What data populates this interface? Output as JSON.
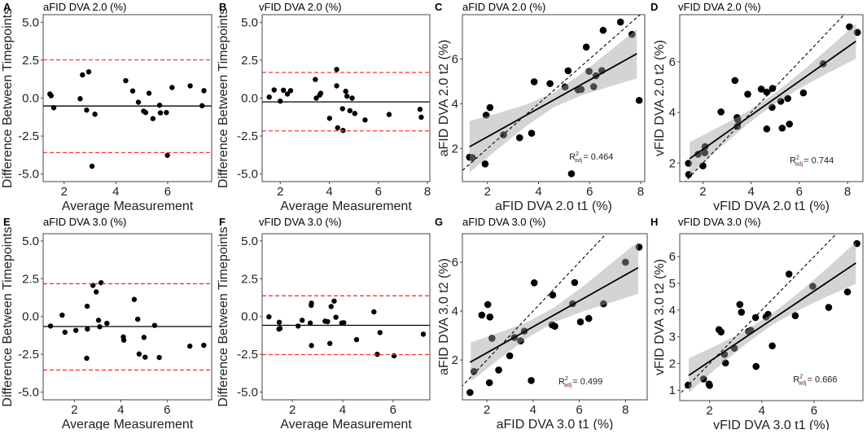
{
  "colors": {
    "points": "#000000",
    "limits": "#ff3333",
    "band": "#bdbdbd",
    "fit": "#000000",
    "identity": "#000000"
  },
  "chart_data": [
    {
      "panel": "A",
      "type": "scatter",
      "kind": "bland-altman",
      "title": "aFID DVA 2.0 (%)",
      "xlabel": "Average Measurement",
      "ylabel": "Difference Between Timepoints",
      "xlim": [
        1.19,
        7.7
      ],
      "ylim": [
        -5.5,
        5.5
      ],
      "xticks": [
        2,
        4,
        6
      ],
      "xtick_labels": [
        "2",
        "4",
        "6"
      ],
      "yticks": [
        -5,
        -2.5,
        0,
        2.5,
        5
      ],
      "ytick_labels": [
        "-5.0",
        "-2.5",
        "0.0",
        "2.5",
        "5.0"
      ],
      "mean_diff": -0.52,
      "upper_loa": 2.52,
      "lower_loa": -3.59,
      "points": [
        [
          1.45,
          0.27
        ],
        [
          1.5,
          0.16
        ],
        [
          1.6,
          -0.63
        ],
        [
          2.62,
          -0.04
        ],
        [
          2.71,
          1.53
        ],
        [
          2.87,
          -0.79
        ],
        [
          2.95,
          1.73
        ],
        [
          3.08,
          -4.49
        ],
        [
          3.19,
          -1.06
        ],
        [
          4.38,
          1.15
        ],
        [
          4.65,
          0.47
        ],
        [
          4.87,
          -0.27
        ],
        [
          5.07,
          -0.86
        ],
        [
          5.15,
          -0.95
        ],
        [
          5.28,
          0.32
        ],
        [
          5.43,
          -1.35
        ],
        [
          5.69,
          -0.47
        ],
        [
          5.72,
          -0.97
        ],
        [
          5.95,
          -0.95
        ],
        [
          5.99,
          -3.77
        ],
        [
          6.17,
          0.7
        ],
        [
          6.87,
          0.81
        ],
        [
          7.33,
          -0.5
        ],
        [
          7.4,
          0.49
        ]
      ]
    },
    {
      "panel": "B",
      "type": "scatter",
      "kind": "bland-altman",
      "title": "vFID DVA 2.0 (%)",
      "xlabel": "Average Measurement",
      "ylabel": "Difference Between Timepoints",
      "xlim": [
        1.26,
        8.1
      ],
      "ylim": [
        -5.5,
        5.5
      ],
      "xticks": [
        2,
        4,
        6,
        8
      ],
      "xtick_labels": [
        "2",
        "4",
        "6",
        "8"
      ],
      "yticks": [
        -5,
        -2.5,
        0,
        2.5,
        5
      ],
      "ytick_labels": [
        "-5.0",
        "-2.5",
        "0.0",
        "2.5",
        "5.0"
      ],
      "mean_diff": -0.25,
      "upper_loa": 1.69,
      "lower_loa": -2.16,
      "points": [
        [
          1.55,
          0.07
        ],
        [
          1.75,
          0.54
        ],
        [
          2.0,
          -0.2
        ],
        [
          2.13,
          0.52
        ],
        [
          2.29,
          0.27
        ],
        [
          2.42,
          0.49
        ],
        [
          3.43,
          1.23
        ],
        [
          3.47,
          0.0
        ],
        [
          3.61,
          0.2
        ],
        [
          3.65,
          0.32
        ],
        [
          4.01,
          -1.33
        ],
        [
          4.3,
          1.89
        ],
        [
          4.3,
          0.81
        ],
        [
          4.34,
          -1.96
        ],
        [
          4.56,
          -2.13
        ],
        [
          4.54,
          -0.7
        ],
        [
          4.67,
          0.45
        ],
        [
          4.72,
          0.13
        ],
        [
          4.84,
          -0.83
        ],
        [
          4.93,
          0.0
        ],
        [
          5.04,
          -1.01
        ],
        [
          5.46,
          -1.44
        ],
        [
          6.44,
          -1.08
        ],
        [
          7.7,
          -0.74
        ],
        [
          7.75,
          -1.26
        ]
      ]
    },
    {
      "panel": "C",
      "type": "scatter",
      "kind": "regression",
      "title": "aFID DVA 2.0 (%)",
      "xlabel": "aFID DVA 2.0 t1 (%)",
      "ylabel": "aFID DVA 2.0 t2 (%)",
      "xlim": [
        1.02,
        8.16
      ],
      "ylim": [
        0.52,
        7.98
      ],
      "xticks": [
        2,
        4,
        6,
        8
      ],
      "xtick_labels": [
        "2",
        "4",
        "6",
        "8"
      ],
      "yticks": [
        2,
        4,
        6
      ],
      "ytick_labels": [
        "2",
        "4",
        "6"
      ],
      "r2_label": "R",
      "r2_sup": "2",
      "r2_sub": "adj",
      "r2_value": "= 0.464",
      "fit": {
        "slope": 0.635,
        "intercept": 1.25,
        "x_range": [
          1.3,
          7.85
        ]
      },
      "ci_band": {
        "x": [
          1.3,
          2.4,
          3.5,
          4.6,
          5.7,
          6.8,
          7.85
        ],
        "lower": [
          0.93,
          1.97,
          2.98,
          3.85,
          4.38,
          4.77,
          5.13
        ],
        "upper": [
          3.23,
          3.57,
          3.96,
          4.49,
          5.36,
          6.37,
          7.33
        ]
      },
      "points": [
        [
          1.3,
          1.61
        ],
        [
          1.41,
          1.59
        ],
        [
          1.91,
          1.31
        ],
        [
          1.95,
          3.49
        ],
        [
          2.1,
          3.83
        ],
        [
          2.63,
          2.61
        ],
        [
          3.26,
          2.48
        ],
        [
          3.73,
          2.68
        ],
        [
          3.83,
          4.98
        ],
        [
          4.45,
          4.9
        ],
        [
          5.04,
          4.75
        ],
        [
          5.16,
          5.47
        ],
        [
          5.29,
          0.87
        ],
        [
          5.55,
          4.62
        ],
        [
          5.67,
          4.64
        ],
        [
          5.87,
          6.53
        ],
        [
          5.98,
          5.45
        ],
        [
          6.16,
          4.76
        ],
        [
          6.25,
          5.25
        ],
        [
          6.48,
          5.48
        ],
        [
          6.53,
          7.28
        ],
        [
          7.21,
          7.65
        ],
        [
          7.66,
          7.1
        ],
        [
          7.94,
          4.15
        ]
      ]
    },
    {
      "panel": "D",
      "type": "scatter",
      "kind": "regression",
      "title": "vFID DVA 2.0 (%)",
      "xlabel": "vFID DVA 2.0 t1 (%)",
      "ylabel": "vFID DVA 2.0 t2 (%)",
      "xlim": [
        1.04,
        8.64
      ],
      "ylim": [
        1.27,
        7.86
      ],
      "xticks": [
        2,
        4,
        6,
        8
      ],
      "xtick_labels": [
        "2",
        "4",
        "6",
        "8"
      ],
      "yticks": [
        2,
        4,
        6
      ],
      "ytick_labels": [
        "2",
        "4",
        "6"
      ],
      "r2_label": "R",
      "r2_sup": "2",
      "r2_sub": "adj",
      "r2_value": "= 0.744",
      "fit": {
        "slope": 0.672,
        "intercept": 1.2,
        "x_range": [
          1.45,
          8.35
        ]
      },
      "ci_band": {
        "x": [
          1.45,
          2.6,
          3.75,
          4.9,
          6.05,
          7.2,
          8.35
        ],
        "lower": [
          1.52,
          2.51,
          3.46,
          4.29,
          4.97,
          5.56,
          6.12
        ],
        "upper": [
          2.82,
          3.39,
          3.98,
          4.69,
          5.57,
          6.52,
          7.5
        ]
      },
      "points": [
        [
          1.4,
          1.99
        ],
        [
          1.41,
          1.55
        ],
        [
          1.8,
          2.35
        ],
        [
          2.0,
          1.89
        ],
        [
          2.08,
          2.41
        ],
        [
          2.09,
          2.65
        ],
        [
          2.75,
          4.02
        ],
        [
          3.33,
          5.26
        ],
        [
          3.42,
          3.8
        ],
        [
          3.44,
          3.72
        ],
        [
          3.43,
          3.45
        ],
        [
          3.86,
          4.72
        ],
        [
          4.42,
          4.92
        ],
        [
          4.65,
          4.8
        ],
        [
          4.65,
          3.35
        ],
        [
          4.89,
          4.95
        ],
        [
          4.87,
          4.2
        ],
        [
          5.23,
          4.44
        ],
        [
          5.29,
          3.38
        ],
        [
          5.52,
          4.55
        ],
        [
          5.59,
          3.54
        ],
        [
          6.17,
          4.77
        ],
        [
          6.99,
          5.92
        ],
        [
          8.08,
          7.38
        ],
        [
          8.41,
          7.16
        ]
      ]
    },
    {
      "panel": "E",
      "type": "scatter",
      "kind": "bland-altman",
      "title": "aFID DVA 3.0 (%)",
      "xlabel": "Average Measurement",
      "ylabel": "Difference Between Timepoints",
      "xlim": [
        0.65,
        7.92
      ],
      "ylim": [
        -5.51,
        5.48
      ],
      "xticks": [
        2,
        4,
        6
      ],
      "xtick_labels": [
        "2",
        "4",
        "6"
      ],
      "yticks": [
        -5,
        -2.5,
        0,
        2.5,
        5
      ],
      "ytick_labels": [
        "-5.0",
        "-2.5",
        "0.0",
        "2.5",
        "5.0"
      ],
      "mean_diff": -0.66,
      "upper_loa": 2.17,
      "lower_loa": -3.54,
      "points": [
        [
          0.97,
          -0.63
        ],
        [
          1.47,
          0.09
        ],
        [
          1.59,
          -1.04
        ],
        [
          2.06,
          -0.92
        ],
        [
          2.53,
          -2.76
        ],
        [
          2.55,
          0.68
        ],
        [
          2.56,
          -0.83
        ],
        [
          2.8,
          2.06
        ],
        [
          2.94,
          1.63
        ],
        [
          3.04,
          -0.25
        ],
        [
          3.09,
          -0.68
        ],
        [
          3.15,
          2.24
        ],
        [
          3.4,
          -0.45
        ],
        [
          4.11,
          -1.35
        ],
        [
          4.13,
          -1.56
        ],
        [
          4.58,
          1.13
        ],
        [
          4.73,
          -0.18
        ],
        [
          4.79,
          -2.48
        ],
        [
          5.0,
          -1.38
        ],
        [
          5.05,
          -2.69
        ],
        [
          5.46,
          -0.59
        ],
        [
          5.66,
          -2.71
        ],
        [
          6.98,
          -1.96
        ],
        [
          7.58,
          -1.9
        ]
      ]
    },
    {
      "panel": "F",
      "type": "scatter",
      "kind": "bland-altman",
      "title": "vFID DVA 3.0 (%)",
      "xlabel": "Average Measurement",
      "ylabel": "Difference Between Timepoints",
      "xlim": [
        0.8,
        7.46
      ],
      "ylim": [
        -5.51,
        5.48
      ],
      "xticks": [
        2,
        4,
        6
      ],
      "xtick_labels": [
        "2",
        "4",
        "6"
      ],
      "yticks": [
        -5,
        -2.5,
        0,
        2.5,
        5
      ],
      "ytick_labels": [
        "-5.0",
        "-2.5",
        "0.0",
        "2.5",
        "5.0"
      ],
      "mean_diff": -0.58,
      "upper_loa": 1.37,
      "lower_loa": -2.52,
      "points": [
        [
          1.07,
          -0.02
        ],
        [
          1.48,
          -0.38
        ],
        [
          1.47,
          -0.83
        ],
        [
          1.51,
          -0.79
        ],
        [
          2.23,
          -0.63
        ],
        [
          2.39,
          -0.25
        ],
        [
          2.71,
          -0.43
        ],
        [
          2.76,
          0.88
        ],
        [
          2.75,
          0.74
        ],
        [
          2.76,
          -1.92
        ],
        [
          3.3,
          -0.31
        ],
        [
          3.4,
          -0.34
        ],
        [
          3.49,
          -1.78
        ],
        [
          3.54,
          0.66
        ],
        [
          3.66,
          1.02
        ],
        [
          3.73,
          -0.05
        ],
        [
          3.96,
          -0.43
        ],
        [
          4.04,
          -0.41
        ],
        [
          4.55,
          -1.53
        ],
        [
          5.24,
          0.31
        ],
        [
          5.37,
          -2.5
        ],
        [
          5.48,
          -1.06
        ],
        [
          6.04,
          -2.6
        ],
        [
          7.2,
          -1.17
        ]
      ]
    },
    {
      "panel": "G",
      "type": "scatter",
      "kind": "regression",
      "title": "aFID DVA 3.0 (%)",
      "xlabel": "aFID DVA 3.0 t1 (%)",
      "ylabel": "aFID DVA 3.0 t2 (%)",
      "xlim": [
        0.94,
        8.94
      ],
      "ylim": [
        0.37,
        7.17
      ],
      "xticks": [
        2,
        4,
        6,
        8
      ],
      "xtick_labels": [
        "2",
        "4",
        "6",
        "8"
      ],
      "yticks": [
        2,
        4,
        6
      ],
      "ytick_labels": [
        "2",
        "4",
        "6"
      ],
      "r2_label": "R",
      "r2_sup": "2",
      "r2_sub": "adj",
      "r2_value": "= 0.499",
      "fit": {
        "slope": 0.532,
        "intercept": 1.23,
        "x_range": [
          1.27,
          8.55
        ]
      },
      "ci_band": {
        "x": [
          1.3,
          2.5,
          3.7,
          4.9,
          6.1,
          7.3,
          8.55
        ],
        "lower": [
          1.12,
          2.01,
          2.87,
          3.54,
          3.97,
          4.33,
          4.71
        ],
        "upper": [
          2.72,
          3.11,
          3.53,
          4.14,
          4.97,
          5.89,
          6.85
        ]
      },
      "points": [
        [
          1.27,
          0.67
        ],
        [
          1.44,
          1.53
        ],
        [
          1.78,
          3.84
        ],
        [
          2.04,
          4.27
        ],
        [
          2.11,
          1.07
        ],
        [
          2.13,
          3.76
        ],
        [
          2.22,
          2.89
        ],
        [
          2.51,
          1.59
        ],
        [
          2.99,
          2.17
        ],
        [
          3.19,
          2.92
        ],
        [
          3.46,
          2.78
        ],
        [
          3.62,
          3.18
        ],
        [
          3.92,
          1.16
        ],
        [
          4.05,
          5.16
        ],
        [
          4.82,
          3.44
        ],
        [
          4.85,
          4.66
        ],
        [
          4.94,
          3.38
        ],
        [
          5.71,
          4.3
        ],
        [
          5.8,
          5.17
        ],
        [
          6.05,
          3.56
        ],
        [
          6.41,
          3.7
        ],
        [
          7.05,
          4.3
        ],
        [
          8.0,
          6.0
        ],
        [
          8.59,
          6.62
        ]
      ]
    },
    {
      "panel": "H",
      "type": "scatter",
      "kind": "regression",
      "title": "vFID DVA 3.0 (%)",
      "xlabel": "vFID DVA 3.0 t1 (%)",
      "ylabel": "vFID DVA 3.0 t2 (%)",
      "xlim": [
        0.86,
        7.87
      ],
      "ylim": [
        0.61,
        6.86
      ],
      "xticks": [
        2,
        4,
        6
      ],
      "xtick_labels": [
        "2",
        "4",
        "6"
      ],
      "yticks": [
        1,
        2,
        3,
        4,
        5,
        6
      ],
      "ytick_labels": [
        "1",
        "2",
        "3",
        "4",
        "5",
        "6"
      ],
      "r2_label": "R",
      "r2_sup": "2",
      "r2_sub": "adj",
      "r2_value": "= 0.666",
      "fit": {
        "slope": 0.658,
        "intercept": 0.76,
        "x_range": [
          1.2,
          7.6
        ]
      },
      "ci_band": {
        "x": [
          1.2,
          2.27,
          3.33,
          4.4,
          5.47,
          6.53,
          7.6
        ],
        "lower": [
          0.91,
          1.82,
          2.69,
          3.45,
          4.03,
          4.52,
          4.98
        ],
        "upper": [
          2.19,
          2.68,
          3.21,
          3.87,
          4.69,
          5.6,
          6.54
        ]
      },
      "points": [
        [
          1.18,
          1.19
        ],
        [
          1.77,
          1.42
        ],
        [
          1.98,
          1.23
        ],
        [
          2.0,
          1.18
        ],
        [
          2.36,
          3.27
        ],
        [
          2.44,
          3.18
        ],
        [
          2.57,
          2.34
        ],
        [
          2.61,
          2.02
        ],
        [
          2.95,
          2.57
        ],
        [
          3.16,
          4.21
        ],
        [
          3.22,
          3.92
        ],
        [
          3.49,
          3.2
        ],
        [
          3.58,
          3.24
        ],
        [
          3.76,
          3.72
        ],
        [
          3.78,
          1.89
        ],
        [
          4.16,
          3.74
        ],
        [
          4.24,
          3.84
        ],
        [
          4.4,
          2.66
        ],
        [
          5.04,
          5.35
        ],
        [
          5.28,
          3.79
        ],
        [
          5.95,
          4.89
        ],
        [
          6.56,
          4.1
        ],
        [
          7.28,
          4.68
        ],
        [
          7.64,
          6.49
        ]
      ]
    }
  ]
}
